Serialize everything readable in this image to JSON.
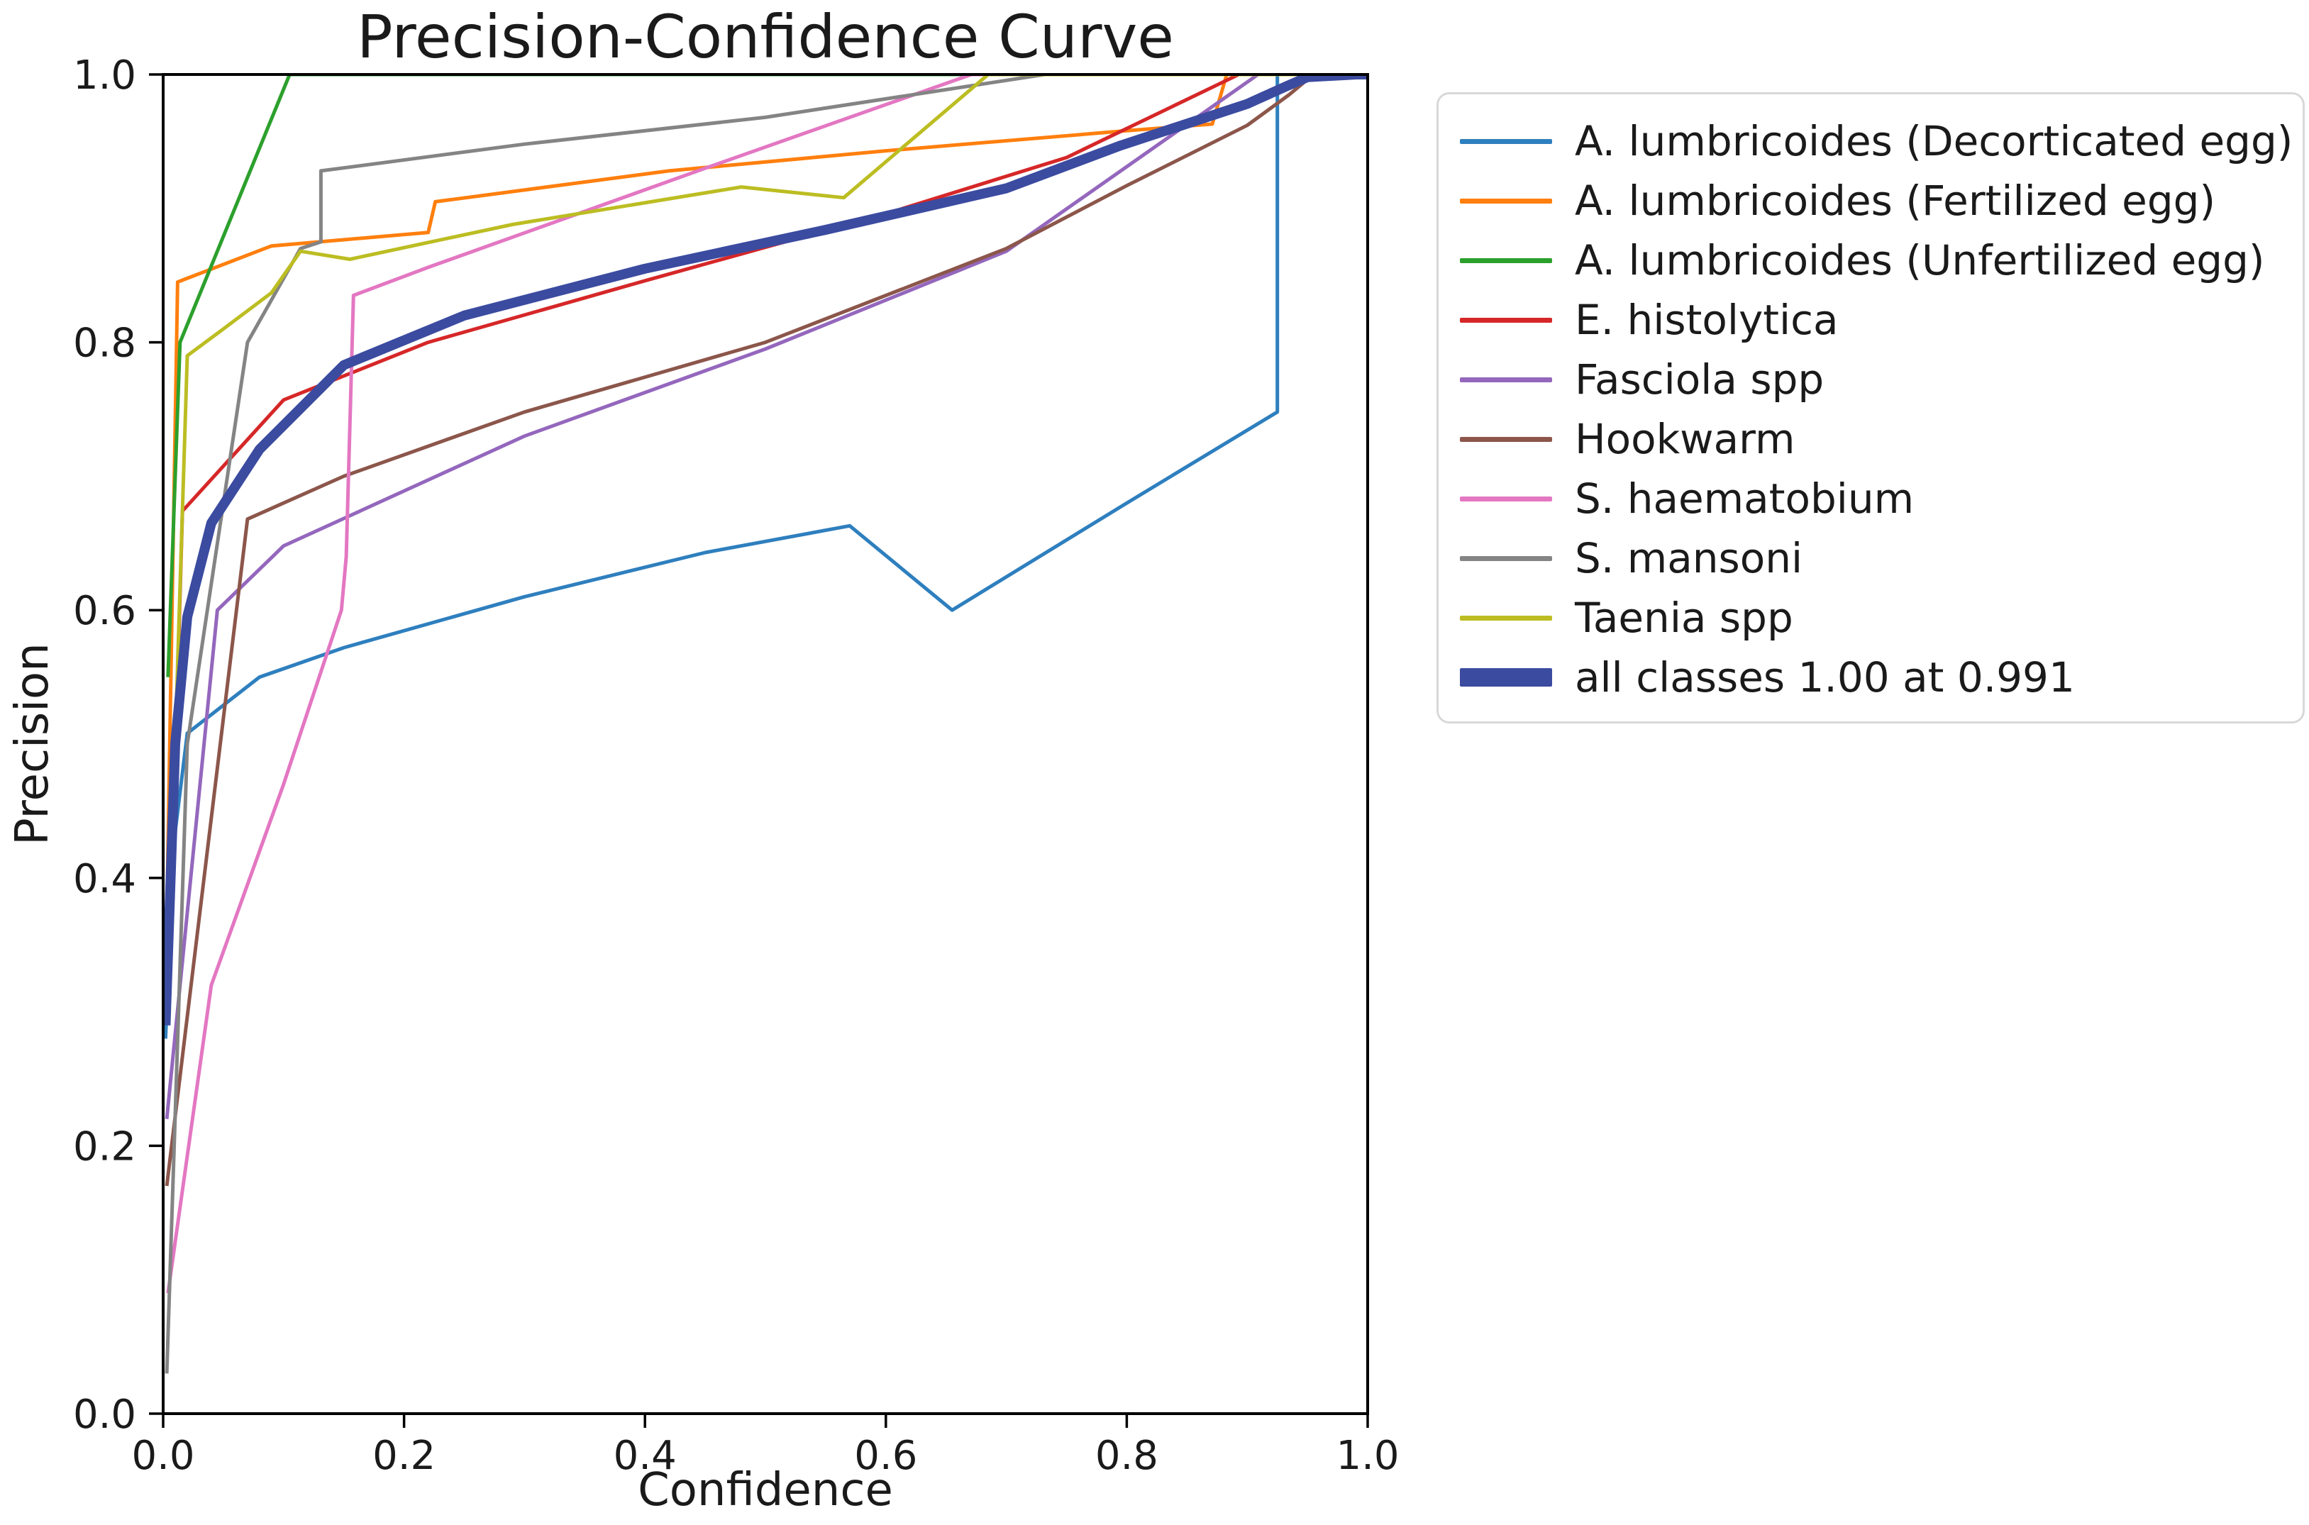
{
  "figure": {
    "background": "#ffffff",
    "frame_color": "#000000",
    "text_color": "#1a1a1a",
    "legend_border_color": "#d8d8d8"
  },
  "chart_data": {
    "type": "line",
    "title": "Precision-Confidence Curve",
    "xlabel": "Confidence",
    "ylabel": "Precision",
    "xlim": [
      0,
      1
    ],
    "ylim": [
      0,
      1
    ],
    "grid": false,
    "legend_position": "outside-upper-right",
    "x_tick_labels": [
      "0.0",
      "0.2",
      "0.4",
      "0.6",
      "0.8",
      "1.0"
    ],
    "x_tick_values": [
      0.0,
      0.2,
      0.4,
      0.6,
      0.8,
      1.0
    ],
    "y_tick_labels": [
      "0.0",
      "0.2",
      "0.4",
      "0.6",
      "0.8",
      "1.0"
    ],
    "y_tick_values": [
      0.0,
      0.2,
      0.4,
      0.6,
      0.8,
      1.0
    ],
    "series": [
      {
        "name": "A. lumbricoides (Decorticated egg)",
        "color": "#2e7fbe",
        "line_width": 5,
        "points": [
          [
            0.002,
            0.28
          ],
          [
            0.008,
            0.42
          ],
          [
            0.02,
            0.508
          ],
          [
            0.08,
            0.55
          ],
          [
            0.15,
            0.572
          ],
          [
            0.3,
            0.61
          ],
          [
            0.45,
            0.643
          ],
          [
            0.57,
            0.663
          ],
          [
            0.655,
            0.6
          ],
          [
            0.8,
            0.68
          ],
          [
            0.925,
            0.748
          ],
          [
            0.925,
            1.0
          ],
          [
            1.0,
            1.0
          ]
        ]
      },
      {
        "name": "A. lumbricoides (Fertilized egg)",
        "color": "#ff7f0e",
        "line_width": 5,
        "points": [
          [
            0.003,
            0.37
          ],
          [
            0.012,
            0.845
          ],
          [
            0.09,
            0.872
          ],
          [
            0.22,
            0.882
          ],
          [
            0.226,
            0.905
          ],
          [
            0.42,
            0.928
          ],
          [
            0.6,
            0.943
          ],
          [
            0.8,
            0.958
          ],
          [
            0.871,
            0.963
          ],
          [
            0.883,
            1.0
          ],
          [
            1.0,
            1.0
          ]
        ]
      },
      {
        "name": "A. lumbricoides (Unfertilized egg)",
        "color": "#2ca02c",
        "line_width": 5,
        "points": [
          [
            0.004,
            0.55
          ],
          [
            0.014,
            0.8
          ],
          [
            0.105,
            1.0
          ],
          [
            1.0,
            1.0
          ]
        ]
      },
      {
        "name": "E. histolytica",
        "color": "#d62728",
        "line_width": 5,
        "points": [
          [
            0.004,
            0.3
          ],
          [
            0.016,
            0.674
          ],
          [
            0.1,
            0.757
          ],
          [
            0.22,
            0.8
          ],
          [
            0.4,
            0.846
          ],
          [
            0.6,
            0.896
          ],
          [
            0.75,
            0.938
          ],
          [
            0.893,
            1.0
          ],
          [
            1.0,
            1.0
          ]
        ]
      },
      {
        "name": "Fasciola spp",
        "color": "#9467bd",
        "line_width": 5,
        "points": [
          [
            0.003,
            0.22
          ],
          [
            0.045,
            0.6
          ],
          [
            0.1,
            0.648
          ],
          [
            0.3,
            0.73
          ],
          [
            0.5,
            0.795
          ],
          [
            0.7,
            0.868
          ],
          [
            0.909,
            1.0
          ],
          [
            1.0,
            1.0
          ]
        ]
      },
      {
        "name": "Hookwarm",
        "color": "#8c564b",
        "line_width": 5,
        "points": [
          [
            0.003,
            0.17
          ],
          [
            0.07,
            0.668
          ],
          [
            0.15,
            0.7
          ],
          [
            0.3,
            0.748
          ],
          [
            0.5,
            0.8
          ],
          [
            0.7,
            0.87
          ],
          [
            0.8,
            0.917
          ],
          [
            0.9,
            0.962
          ],
          [
            0.935,
            0.985
          ],
          [
            0.955,
            1.0
          ],
          [
            1.0,
            1.0
          ]
        ]
      },
      {
        "name": "S. haematobium",
        "color": "#e377c2",
        "line_width": 5,
        "points": [
          [
            0.004,
            0.09
          ],
          [
            0.04,
            0.32
          ],
          [
            0.1,
            0.47
          ],
          [
            0.148,
            0.6
          ],
          [
            0.152,
            0.64
          ],
          [
            0.158,
            0.835
          ],
          [
            0.22,
            0.856
          ],
          [
            0.45,
            0.93
          ],
          [
            0.671,
            1.0
          ],
          [
            1.0,
            1.0
          ]
        ]
      },
      {
        "name": "S. mansoni",
        "color": "#848484",
        "line_width": 5,
        "points": [
          [
            0.003,
            0.03
          ],
          [
            0.02,
            0.5
          ],
          [
            0.07,
            0.8
          ],
          [
            0.114,
            0.87
          ],
          [
            0.131,
            0.875
          ],
          [
            0.131,
            0.928
          ],
          [
            0.3,
            0.948
          ],
          [
            0.5,
            0.968
          ],
          [
            0.732,
            1.0
          ],
          [
            1.0,
            1.0
          ]
        ]
      },
      {
        "name": "Taenia spp",
        "color": "#bcbd22",
        "line_width": 5,
        "points": [
          [
            0.003,
            0.3
          ],
          [
            0.02,
            0.79
          ],
          [
            0.05,
            0.81
          ],
          [
            0.09,
            0.837
          ],
          [
            0.114,
            0.868
          ],
          [
            0.155,
            0.862
          ],
          [
            0.29,
            0.888
          ],
          [
            0.48,
            0.916
          ],
          [
            0.565,
            0.908
          ],
          [
            0.685,
            1.0
          ],
          [
            1.0,
            1.0
          ]
        ]
      },
      {
        "name": "all classes 1.00 at 0.991",
        "color": "#3b4ba0",
        "line_width": 14,
        "points": [
          [
            0.002,
            0.29
          ],
          [
            0.01,
            0.5
          ],
          [
            0.02,
            0.595
          ],
          [
            0.04,
            0.665
          ],
          [
            0.08,
            0.72
          ],
          [
            0.15,
            0.783
          ],
          [
            0.25,
            0.82
          ],
          [
            0.4,
            0.855
          ],
          [
            0.55,
            0.884
          ],
          [
            0.7,
            0.915
          ],
          [
            0.795,
            0.947
          ],
          [
            0.9,
            0.978
          ],
          [
            0.932,
            0.991
          ],
          [
            0.95,
            0.998
          ],
          [
            0.991,
            1.0
          ],
          [
            1.0,
            1.0
          ]
        ]
      }
    ]
  }
}
